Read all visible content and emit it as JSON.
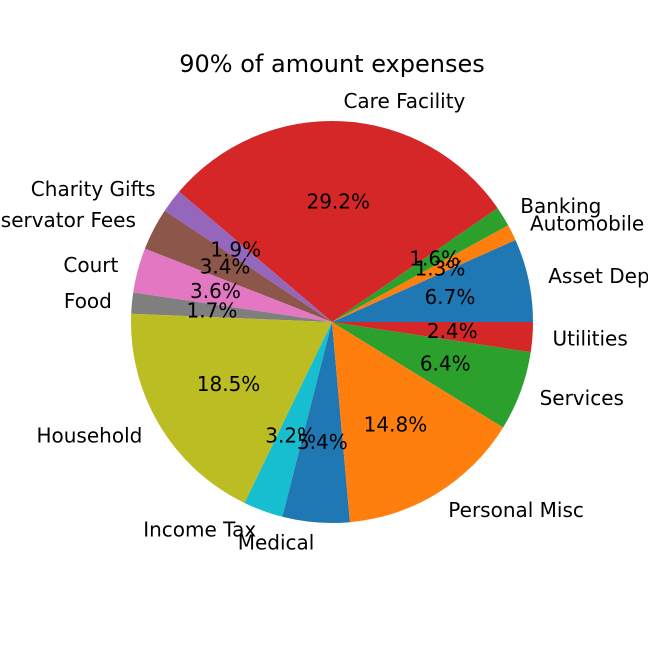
{
  "chart_data": {
    "type": "pie",
    "title": "90% of amount expenses",
    "categories": [
      "Asset Dep",
      "Automobile",
      "Banking",
      "Care Facility",
      "Charity Gifts",
      "Conservator Fees",
      "Court",
      "Food",
      "Household",
      "Income Tax",
      "Medical",
      "Personal Misc",
      "Services",
      "Utilities"
    ],
    "values": [
      6.7,
      1.3,
      1.6,
      29.2,
      1.9,
      3.4,
      3.6,
      1.7,
      18.5,
      3.2,
      5.4,
      14.8,
      6.4,
      2.4
    ],
    "value_labels": [
      "6.7%",
      "1.3%",
      "1.6%",
      "29.2%",
      "1.9%",
      "3.4%",
      "3.6%",
      "1.7%",
      "18.5%",
      "3.2%",
      "5.4%",
      "14.8%",
      "6.4%",
      "2.4%"
    ],
    "colors": [
      "#1f77b4",
      "#ff7f0e",
      "#2ca02c",
      "#d62728",
      "#9467bd",
      "#8c564b",
      "#e377c2",
      "#7f7f7f",
      "#bcbd22",
      "#17becf",
      "#1f77b4",
      "#ff7f0e",
      "#2ca02c",
      "#d62728"
    ],
    "start_angle_deg": 0,
    "direction": "counterclockwise",
    "legend": "none"
  }
}
